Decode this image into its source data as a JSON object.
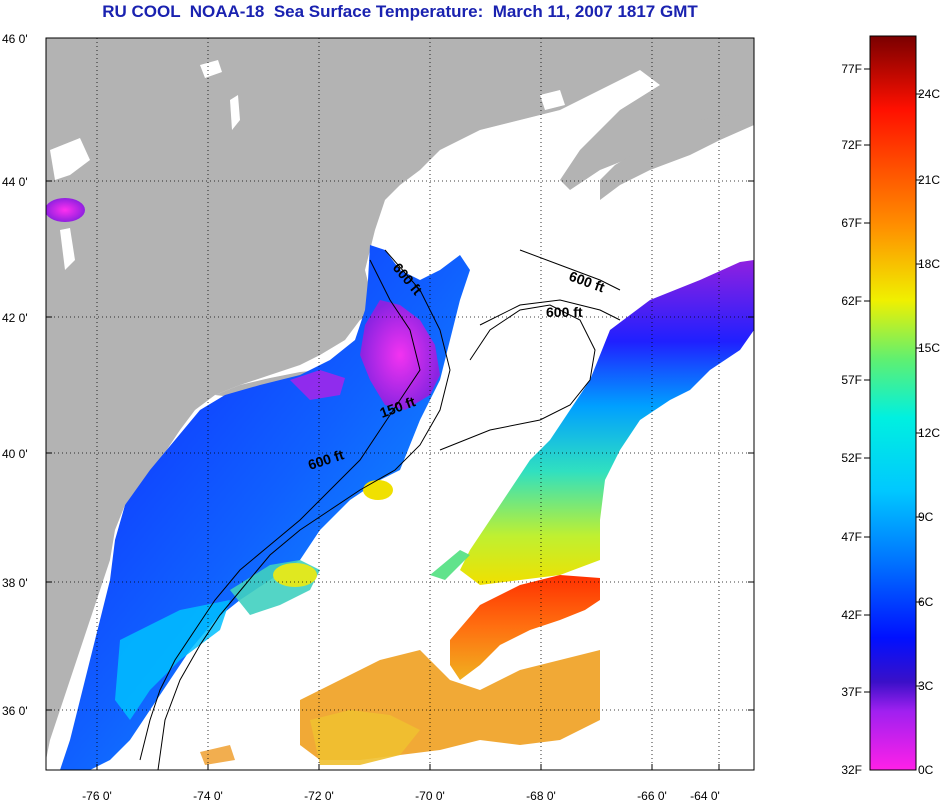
{
  "title": "RU COOL  NOAA-18  Sea Surface Temperature:  March 11, 2007 1817 GMT",
  "map": {
    "lat_ticks": [
      {
        "value": 46,
        "label": "46 0'"
      },
      {
        "value": 44,
        "label": "44 0'"
      },
      {
        "value": 42,
        "label": "42 0'"
      },
      {
        "value": 40,
        "label": "40 0'"
      },
      {
        "value": 38,
        "label": "38 0'"
      },
      {
        "value": 36,
        "label": "36 0'"
      }
    ],
    "lon_ticks": [
      {
        "value": -76,
        "label": "-76 0'"
      },
      {
        "value": -74,
        "label": "-74 0'"
      },
      {
        "value": -72,
        "label": "-72 0'"
      },
      {
        "value": -70,
        "label": "-70 0'"
      },
      {
        "value": -68,
        "label": "-68 0'"
      },
      {
        "value": -66,
        "label": "-66 0'"
      },
      {
        "value": -64,
        "label": "-64 0'"
      }
    ],
    "contour_labels": [
      {
        "text": "600 ft"
      },
      {
        "text": "600 ft"
      },
      {
        "text": "600 ft"
      },
      {
        "text": "150 ft"
      },
      {
        "text": "600 ft"
      }
    ]
  },
  "colorbar": {
    "fahrenheit": [
      "77F",
      "72F",
      "67F",
      "62F",
      "57F",
      "52F",
      "47F",
      "42F",
      "37F",
      "32F"
    ],
    "celsius": [
      "24C",
      "21C",
      "18C",
      "15C",
      "12C",
      "9C",
      "6C",
      "3C",
      "0C"
    ]
  },
  "colors": {
    "land": "#b3b3b3",
    "no_data": "#ffffff",
    "title": "#1a22b0"
  }
}
